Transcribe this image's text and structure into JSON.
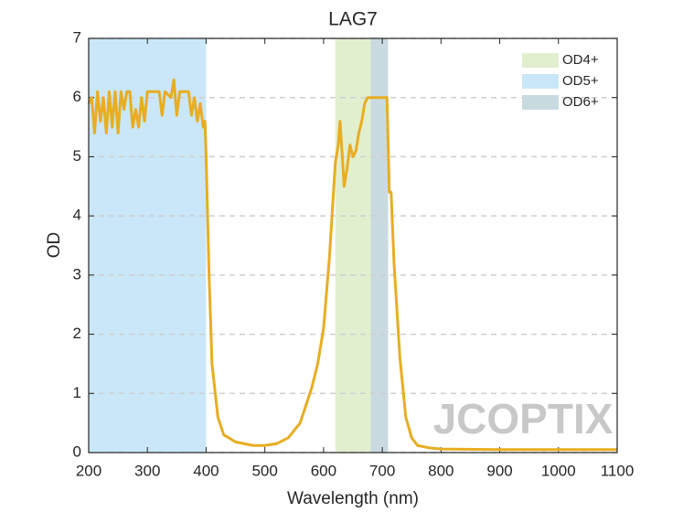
{
  "chart_data": {
    "type": "line",
    "title": "LAG7",
    "xlabel": "Wavelength (nm)",
    "ylabel": "OD",
    "watermark": "JCOPTIX",
    "xlim": [
      200,
      1100
    ],
    "xticks": [
      200,
      300,
      400,
      500,
      600,
      700,
      800,
      900,
      1000,
      1100
    ],
    "ylim": [
      0,
      7
    ],
    "yticks": [
      0,
      1,
      2,
      3,
      4,
      5,
      6,
      7
    ],
    "grid": "y",
    "legend": "upper right",
    "bands": [
      {
        "name": "OD4+",
        "color": "#e2efcf",
        "x": [
          620,
          680
        ]
      },
      {
        "name": "OD5+",
        "color": "#c9e7f8",
        "x": [
          200,
          400
        ]
      },
      {
        "name": "OD6+",
        "color": "#c9dbe0",
        "x": [
          680,
          710
        ]
      }
    ],
    "x": [
      200,
      205,
      210,
      215,
      220,
      225,
      230,
      235,
      240,
      245,
      250,
      255,
      260,
      265,
      270,
      275,
      280,
      285,
      290,
      295,
      300,
      310,
      320,
      325,
      330,
      340,
      345,
      350,
      355,
      360,
      370,
      375,
      380,
      385,
      390,
      395,
      398,
      400,
      405,
      410,
      420,
      430,
      450,
      480,
      500,
      520,
      540,
      560,
      570,
      580,
      590,
      600,
      610,
      620,
      625,
      628,
      632,
      635,
      640,
      645,
      650,
      655,
      660,
      665,
      670,
      675,
      690,
      700,
      708,
      710,
      712,
      715,
      720,
      730,
      740,
      750,
      760,
      780,
      800,
      900,
      1000,
      1100
    ],
    "series": [
      {
        "color": "#e8ad22",
        "values": [
          5.9,
          6.0,
          5.4,
          6.1,
          5.6,
          6.0,
          5.4,
          6.1,
          5.5,
          6.1,
          5.4,
          6.1,
          5.8,
          6.1,
          6.1,
          5.5,
          5.8,
          5.5,
          6.0,
          5.6,
          6.1,
          6.1,
          6.1,
          5.7,
          6.1,
          6.0,
          6.3,
          5.7,
          6.1,
          6.1,
          6.1,
          5.7,
          6.0,
          5.6,
          5.9,
          5.5,
          5.6,
          5.0,
          3.0,
          1.5,
          0.6,
          0.3,
          0.18,
          0.12,
          0.12,
          0.15,
          0.25,
          0.5,
          0.8,
          1.1,
          1.5,
          2.1,
          3.3,
          4.9,
          5.2,
          5.6,
          5.0,
          4.5,
          4.8,
          5.2,
          5.0,
          5.1,
          5.4,
          5.6,
          5.9,
          6.0,
          6.0,
          6.0,
          6.0,
          5.2,
          4.4,
          4.4,
          3.2,
          1.6,
          0.6,
          0.25,
          0.12,
          0.08,
          0.06,
          0.05,
          0.05,
          0.05
        ]
      }
    ]
  }
}
